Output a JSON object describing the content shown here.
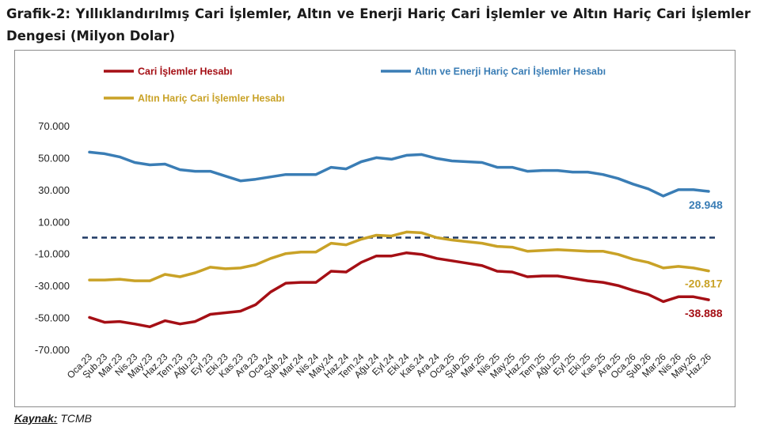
{
  "title": "Grafik-2: Yıllıklandırılmış Cari İşlemler, Altın ve Enerji Hariç Cari İşlemler ve Altın Hariç Cari İşlemler Dengesi (Milyon Dolar)",
  "source_label": "Kaynak:",
  "source_value": "TCMB",
  "colors": {
    "cari": "#A50F15",
    "altin_enerji": "#3A7DB5",
    "altin_haric": "#C9A227",
    "zero_line": "#1F3864"
  },
  "chart_data": {
    "type": "line",
    "categories": [
      "Oca.23",
      "Şub.23",
      "Mar.23",
      "Nis.23",
      "May.23",
      "Haz.23",
      "Tem.23",
      "Ağu.23",
      "Eyl.23",
      "Eki.23",
      "Kas.23",
      "Ara.23",
      "Oca.24",
      "Şub.24",
      "Mar.24",
      "Nis.24",
      "May.24",
      "Haz.24",
      "Tem.24",
      "Ağu.24",
      "Eyl.24",
      "Eki.24",
      "Kas.24",
      "Ara.24",
      "Oca.25",
      "Şub.25",
      "Mar.25",
      "Nis.25",
      "May.25",
      "Haz.25",
      "Tem.25",
      "Ağu.25",
      "Eyl.25",
      "Eki.25",
      "Kas.25",
      "Ara.25",
      "Oca.26",
      "Şub.26",
      "Mar.26",
      "Nis.26",
      "May.26",
      "Haz.26"
    ],
    "series": [
      {
        "key": "cari",
        "name": "Cari İşlemler Hesabı",
        "end_label": "-38.888",
        "values": [
          -49900,
          -53000,
          -52500,
          -54000,
          -55800,
          -52000,
          -54000,
          -52500,
          -48000,
          -47000,
          -46000,
          -42000,
          -34000,
          -28500,
          -28000,
          -28000,
          -21000,
          -21500,
          -15500,
          -11500,
          -11500,
          -9500,
          -10500,
          -13000,
          -14500,
          -16000,
          -17500,
          -21000,
          -21500,
          -24500,
          -24000,
          -24000,
          -25500,
          -27000,
          -28000,
          -30000,
          -33000,
          -35500,
          -40000,
          -37000,
          -37000,
          -38888
        ]
      },
      {
        "key": "altin_enerji",
        "name": "Altın ve Enerji Hariç Cari İşlemler Hesabı",
        "end_label": "28.948",
        "values": [
          53500,
          52500,
          50500,
          47000,
          45500,
          46000,
          42500,
          41500,
          41500,
          38500,
          35500,
          36500,
          38000,
          39500,
          39500,
          39500,
          44000,
          43000,
          47500,
          50000,
          49000,
          51500,
          52000,
          49500,
          48000,
          47500,
          47000,
          44000,
          44000,
          41500,
          42000,
          42000,
          41000,
          41000,
          39500,
          37000,
          33500,
          30500,
          26000,
          30000,
          30000,
          28948
        ]
      },
      {
        "key": "altin_haric",
        "name": "Altın Hariç Cari İşlemler Hesabı",
        "end_label": "-20.817",
        "values": [
          -26500,
          -26500,
          -26000,
          -27000,
          -27000,
          -23000,
          -24500,
          -22000,
          -18500,
          -19500,
          -19000,
          -17000,
          -13000,
          -10000,
          -9000,
          -9000,
          -3500,
          -4500,
          -1000,
          1500,
          1000,
          3500,
          3000,
          0,
          -1500,
          -2500,
          -3500,
          -5500,
          -6000,
          -8500,
          -8000,
          -7500,
          -8000,
          -8500,
          -8500,
          -10500,
          -13500,
          -15500,
          -19000,
          -18000,
          -19000,
          -20817
        ]
      }
    ],
    "y_ticks": [
      "70.000",
      "50.000",
      "30.000",
      "10.000",
      "-10.000",
      "-30.000",
      "-50.000",
      "-70.000"
    ],
    "ylim": [
      -70000,
      70000
    ],
    "reference_line": 0,
    "grid": false,
    "legend_position": "top"
  }
}
